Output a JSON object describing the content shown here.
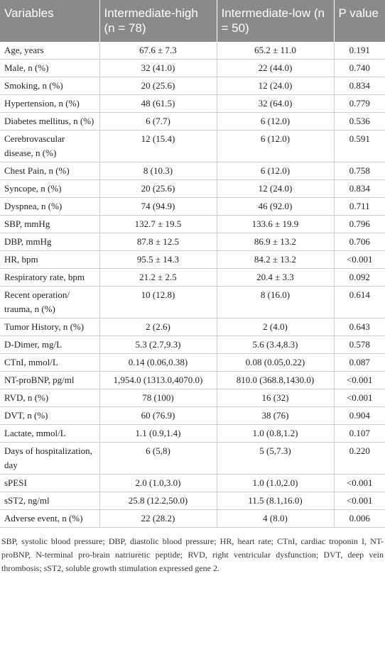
{
  "table": {
    "header": [
      "Variables",
      "Intermediate-high (n = 78)",
      "Intermediate-low (n = 50)",
      "P value"
    ],
    "rows": [
      [
        "Age, years",
        "67.6 ± 7.3",
        "65.2 ± 11.0",
        "0.191"
      ],
      [
        "Male, n (%)",
        "32 (41.0)",
        "22 (44.0)",
        "0.740"
      ],
      [
        "Smoking, n (%)",
        "20 (25.6)",
        "12 (24.0)",
        "0.834"
      ],
      [
        "Hypertension, n (%)",
        "48 (61.5)",
        "32 (64.0)",
        "0.779"
      ],
      [
        "Diabetes mellitus, n (%)",
        "6 (7.7)",
        "6 (12.0)",
        "0.536"
      ],
      [
        "Cerebrovascular disease, n (%)",
        "12 (15.4)",
        "6 (12.0)",
        "0.591"
      ],
      [
        "Chest Pain, n (%)",
        "8 (10.3)",
        "6 (12.0)",
        "0.758"
      ],
      [
        "Syncope, n (%)",
        "20 (25.6)",
        "12 (24.0)",
        "0.834"
      ],
      [
        "Dyspnea, n (%)",
        "74 (94.9)",
        "46 (92.0)",
        "0.711"
      ],
      [
        "SBP, mmHg",
        "132.7 ± 19.5",
        "133.6 ± 19.9",
        "0.796"
      ],
      [
        "DBP, mmHg",
        "87.8 ± 12.5",
        "86.9 ± 13.2",
        "0.706"
      ],
      [
        "HR, bpm",
        "95.5 ± 14.3",
        "84.2 ± 13.2",
        "<0.001"
      ],
      [
        "Respiratory rate, bpm",
        "21.2 ± 2.5",
        "20.4 ± 3.3",
        "0.092"
      ],
      [
        "Recent operation/ trauma, n (%)",
        "10 (12.8)",
        "8 (16.0)",
        "0.614"
      ],
      [
        "Tumor History, n (%)",
        "2 (2.6)",
        "2 (4.0)",
        "0.643"
      ],
      [
        "D-Dimer, mg/L",
        "5.3 (2.7,9.3)",
        "5.6 (3.4,8.3)",
        "0.578"
      ],
      [
        "CTnI, mmol/L",
        "0.14 (0.06,0.38)",
        "0.08 (0.05,0.22)",
        "0.087"
      ],
      [
        "NT-proBNP, pg/ml",
        "1,954.0 (1313.0,4070.0)",
        "810.0 (368.8,1430.0)",
        "<0.001"
      ],
      [
        "RVD, n (%)",
        "78 (100)",
        "16 (32)",
        "<0.001"
      ],
      [
        "DVT, n (%)",
        "60 (76.9)",
        "38 (76)",
        "0.904"
      ],
      [
        "Lactate, mmol/L",
        "1.1 (0.9,1.4)",
        "1.0 (0.8,1.2)",
        "0.107"
      ],
      [
        "Days of hospitalization, day",
        "6 (5,8)",
        "5 (5,7.3)",
        "0.220"
      ],
      [
        "sPESI",
        "2.0 (1.0,3.0)",
        "1.0 (1.0,2.0)",
        "<0.001"
      ],
      [
        "sST2, ng/ml",
        "25.8 (12.2,50.0)",
        "11.5 (8.1,16.0)",
        "<0.001"
      ],
      [
        "Adverse event, n (%)",
        "22 (28.2)",
        "4 (8.0)",
        "0.006"
      ]
    ],
    "footnote": "SBP, systolic blood pressure; DBP, diastolic blood pressure; HR, heart rate; CTnI, cardiac troponin I, NT-proBNP, N-terminal pro-brain natriuretic peptide; RVD, right ventricular dysfunction; DVT, deep vein thrombosis; sST2, soluble growth stimulation expressed gene 2."
  }
}
